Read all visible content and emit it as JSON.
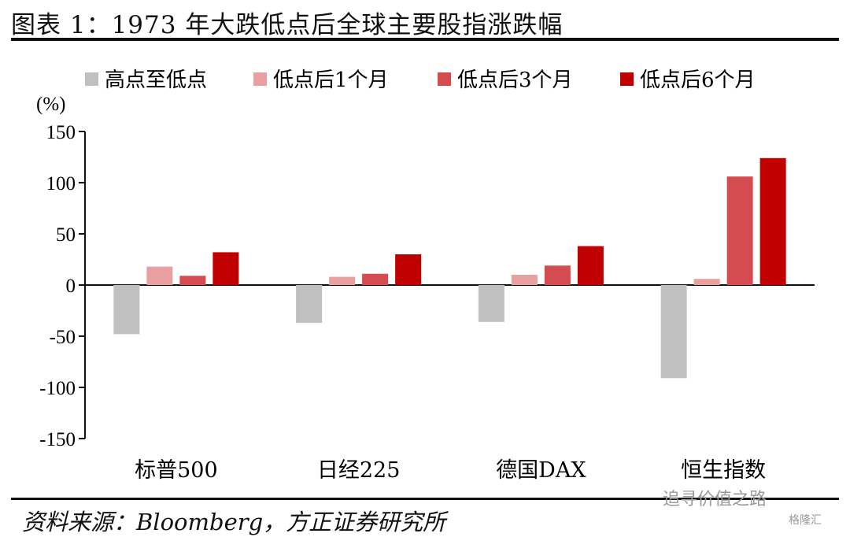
{
  "title": "图表 1：1973 年大跌低点后全球主要股指涨跌幅",
  "source": "资料来源：Bloomberg，方正证券研究所",
  "watermark": "追寻价值之路",
  "watermark_logo": "格隆汇",
  "chart_data": {
    "type": "bar",
    "categories": [
      "标普500",
      "日经225",
      "德国DAX",
      "恒生指数"
    ],
    "ylabel": "(%)",
    "ylim": [
      -150,
      150
    ],
    "yticks": [
      150,
      100,
      50,
      0,
      -50,
      -100,
      -150
    ],
    "legend_position": "top",
    "grid": false,
    "series": [
      {
        "name": "高点至低点",
        "color": "#c0c0c0",
        "values": [
          -48,
          -37,
          -36,
          -91
        ]
      },
      {
        "name": "低点后1个月",
        "color": "#e8a0a0",
        "values": [
          18,
          8,
          10,
          6
        ]
      },
      {
        "name": "低点后3个月",
        "color": "#d44b50",
        "values": [
          9,
          11,
          19,
          106
        ]
      },
      {
        "name": "低点后6个月",
        "color": "#c00000",
        "values": [
          32,
          30,
          38,
          124
        ]
      }
    ]
  }
}
